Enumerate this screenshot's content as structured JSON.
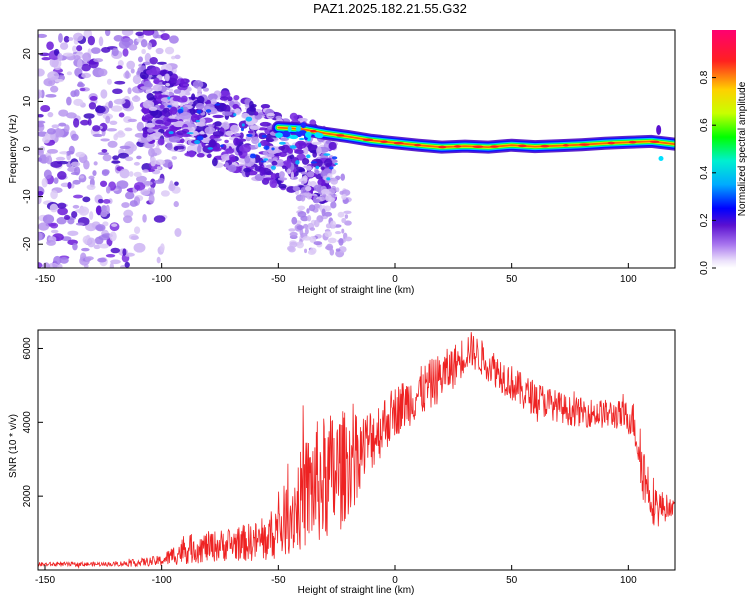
{
  "title": "PAZ1.2025.182.21.55.G32",
  "chart_data": [
    {
      "type": "heatmap",
      "xlabel": "Height of straight line (km)",
      "ylabel": "Frequency (Hz)",
      "xlim": [
        -153,
        120
      ],
      "ylim": [
        -25,
        25
      ],
      "x_ticks": [
        -150,
        -100,
        -50,
        0,
        50,
        100
      ],
      "y_ticks": [
        -20,
        -10,
        0,
        10,
        20
      ],
      "colorbar": {
        "label": "Normalized spectral amplitude",
        "range": [
          0,
          1
        ],
        "ticks": [
          0.0,
          0.2,
          0.4,
          0.6,
          0.8
        ],
        "tick_labels": [
          "0.0",
          "0.2",
          "0.4",
          "0.6",
          "0.8"
        ],
        "colormap": [
          "#ffffff",
          "#d8c4f4",
          "#8f4fe8",
          "#5a10d0",
          "#0000ff",
          "#00aaff",
          "#00e6c0",
          "#00ff00",
          "#c8ff00",
          "#ffd000",
          "#ff2020",
          "#ff0060"
        ]
      },
      "ridge": [
        {
          "x": -50,
          "f": 4.5
        },
        {
          "x": -40,
          "f": 4.2
        },
        {
          "x": -30,
          "f": 3.3
        },
        {
          "x": -20,
          "f": 2.6
        },
        {
          "x": -10,
          "f": 1.8
        },
        {
          "x": 0,
          "f": 1.3
        },
        {
          "x": 10,
          "f": 0.8
        },
        {
          "x": 20,
          "f": 0.4
        },
        {
          "x": 30,
          "f": 0.6
        },
        {
          "x": 40,
          "f": 0.4
        },
        {
          "x": 50,
          "f": 0.8
        },
        {
          "x": 60,
          "f": 0.5
        },
        {
          "x": 70,
          "f": 0.7
        },
        {
          "x": 80,
          "f": 0.9
        },
        {
          "x": 90,
          "f": 1.2
        },
        {
          "x": 100,
          "f": 1.4
        },
        {
          "x": 110,
          "f": 1.6
        },
        {
          "x": 120,
          "f": 1.0
        }
      ]
    },
    {
      "type": "line",
      "xlabel": "Height of straight line (km)",
      "ylabel": "SNR (10 * v/v)",
      "xlim": [
        -153,
        120
      ],
      "ylim": [
        0,
        6500
      ],
      "x_ticks": [
        -150,
        -100,
        -50,
        0,
        50,
        100
      ],
      "y_ticks": [
        2000,
        4000,
        6000
      ],
      "color": "#ee2222",
      "envelope": [
        {
          "x": -153,
          "mean": 150,
          "amp": 60
        },
        {
          "x": -120,
          "mean": 160,
          "amp": 60
        },
        {
          "x": -100,
          "mean": 250,
          "amp": 150
        },
        {
          "x": -90,
          "mean": 550,
          "amp": 400
        },
        {
          "x": -70,
          "mean": 700,
          "amp": 450
        },
        {
          "x": -55,
          "mean": 800,
          "amp": 600
        },
        {
          "x": -45,
          "mean": 1500,
          "amp": 1100
        },
        {
          "x": -35,
          "mean": 2300,
          "amp": 1700
        },
        {
          "x": -25,
          "mean": 2600,
          "amp": 1800
        },
        {
          "x": -15,
          "mean": 3200,
          "amp": 1000
        },
        {
          "x": 0,
          "mean": 4300,
          "amp": 700
        },
        {
          "x": 15,
          "mean": 5000,
          "amp": 700
        },
        {
          "x": 25,
          "mean": 5500,
          "amp": 600
        },
        {
          "x": 32,
          "mean": 6000,
          "amp": 500
        },
        {
          "x": 40,
          "mean": 5600,
          "amp": 500
        },
        {
          "x": 55,
          "mean": 4800,
          "amp": 500
        },
        {
          "x": 75,
          "mean": 4300,
          "amp": 400
        },
        {
          "x": 95,
          "mean": 4200,
          "amp": 400
        },
        {
          "x": 102,
          "mean": 4100,
          "amp": 500
        },
        {
          "x": 107,
          "mean": 2500,
          "amp": 900
        },
        {
          "x": 112,
          "mean": 1700,
          "amp": 600
        },
        {
          "x": 120,
          "mean": 1700,
          "amp": 150
        }
      ]
    }
  ]
}
